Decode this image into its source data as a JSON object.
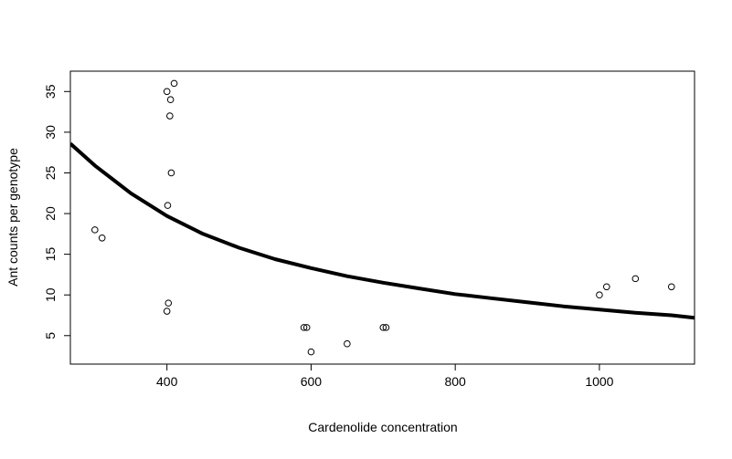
{
  "chart_data": {
    "type": "scatter",
    "title": "",
    "xlabel": "Cardenolide concentration",
    "ylabel": "Ant counts per genotype",
    "xlim": [
      266,
      1132
    ],
    "ylim": [
      1.5,
      37.5
    ],
    "x_ticks": [
      400,
      600,
      800,
      1000
    ],
    "y_ticks": [
      5,
      10,
      15,
      20,
      25,
      30,
      35
    ],
    "grid": false,
    "legend": "none",
    "series": [
      {
        "type": "scatter",
        "marker": "open-circle",
        "points": [
          {
            "x": 300,
            "y": 18
          },
          {
            "x": 310,
            "y": 17
          },
          {
            "x": 400,
            "y": 35
          },
          {
            "x": 410,
            "y": 36
          },
          {
            "x": 405,
            "y": 34
          },
          {
            "x": 404,
            "y": 32
          },
          {
            "x": 406,
            "y": 25
          },
          {
            "x": 401,
            "y": 21
          },
          {
            "x": 402,
            "y": 9
          },
          {
            "x": 400,
            "y": 8
          },
          {
            "x": 590,
            "y": 6
          },
          {
            "x": 594,
            "y": 6
          },
          {
            "x": 600,
            "y": 3
          },
          {
            "x": 650,
            "y": 4
          },
          {
            "x": 700,
            "y": 6
          },
          {
            "x": 704,
            "y": 6
          },
          {
            "x": 1000,
            "y": 10
          },
          {
            "x": 1010,
            "y": 11
          },
          {
            "x": 1050,
            "y": 12
          },
          {
            "x": 1100,
            "y": 11
          }
        ]
      },
      {
        "type": "line",
        "style": "thick-black-fitted-curve",
        "x": [
          266,
          300,
          350,
          400,
          450,
          500,
          550,
          600,
          650,
          700,
          750,
          800,
          850,
          900,
          950,
          1000,
          1050,
          1100,
          1132
        ],
        "y": [
          28.6,
          25.9,
          22.5,
          19.7,
          17.5,
          15.8,
          14.4,
          13.3,
          12.3,
          11.5,
          10.8,
          10.1,
          9.6,
          9.1,
          8.6,
          8.2,
          7.8,
          7.5,
          7.2
        ]
      }
    ],
    "colors": {
      "points": "#000000",
      "curve": "#000000",
      "axis": "#000000",
      "background": "#ffffff"
    }
  }
}
